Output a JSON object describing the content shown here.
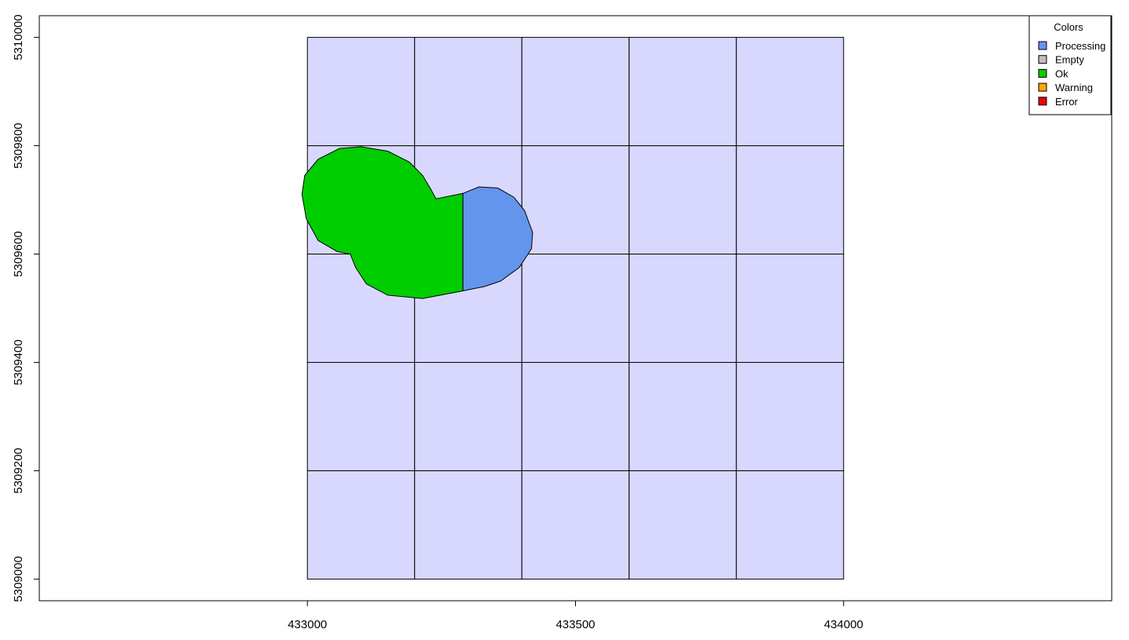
{
  "chart_data": {
    "type": "map",
    "xlim": [
      432500,
      434500
    ],
    "ylim": [
      5308960,
      5310040
    ],
    "x_ticks": [
      {
        "value": 433000,
        "label": "433000"
      },
      {
        "value": 433500,
        "label": "433500"
      },
      {
        "value": 434000,
        "label": "434000"
      }
    ],
    "y_ticks": [
      {
        "value": 5309000,
        "label": "5309000"
      },
      {
        "value": 5309200,
        "label": "5309200"
      },
      {
        "value": 5309400,
        "label": "5309400"
      },
      {
        "value": 5309600,
        "label": "5309600"
      },
      {
        "value": 5309800,
        "label": "5309800"
      },
      {
        "value": 5310000,
        "label": "5310000"
      }
    ],
    "grid": {
      "xmin": 433000,
      "xmax": 434000,
      "ymin": 5309000,
      "ymax": 5310000,
      "columns": 5,
      "rows": 5,
      "fill": "#d8d8ff"
    },
    "legend": {
      "title": "Colors",
      "position": "top-right",
      "items": [
        {
          "label": "Processing",
          "color": "#6495ed"
        },
        {
          "label": "Empty",
          "color": "#bebebe"
        },
        {
          "label": "Ok",
          "color": "#00cd00"
        },
        {
          "label": "Warning",
          "color": "#ffa500"
        },
        {
          "label": "Error",
          "color": "#ee0000"
        }
      ]
    },
    "regions": [
      {
        "status": "Ok",
        "color": "#00cd00",
        "points": [
          [
            433290,
            5309712
          ],
          [
            433240,
            5309702
          ],
          [
            433230,
            5309720
          ],
          [
            433215,
            5309745
          ],
          [
            433190,
            5309770
          ],
          [
            433150,
            5309790
          ],
          [
            433100,
            5309798
          ],
          [
            433060,
            5309795
          ],
          [
            433020,
            5309775
          ],
          [
            432995,
            5309745
          ],
          [
            432990,
            5309710
          ],
          [
            432998,
            5309665
          ],
          [
            433020,
            5309625
          ],
          [
            433055,
            5309605
          ],
          [
            433080,
            5309600
          ],
          [
            433090,
            5309575
          ],
          [
            433110,
            5309545
          ],
          [
            433150,
            5309524
          ],
          [
            433215,
            5309518
          ],
          [
            433290,
            5309532
          ]
        ]
      },
      {
        "status": "Processing",
        "color": "#6495ed",
        "points": [
          [
            433290,
            5309712
          ],
          [
            433320,
            5309724
          ],
          [
            433355,
            5309722
          ],
          [
            433385,
            5309705
          ],
          [
            433405,
            5309680
          ],
          [
            433420,
            5309640
          ],
          [
            433418,
            5309610
          ],
          [
            433395,
            5309575
          ],
          [
            433360,
            5309550
          ],
          [
            433330,
            5309540
          ],
          [
            433290,
            5309532
          ]
        ]
      }
    ]
  }
}
